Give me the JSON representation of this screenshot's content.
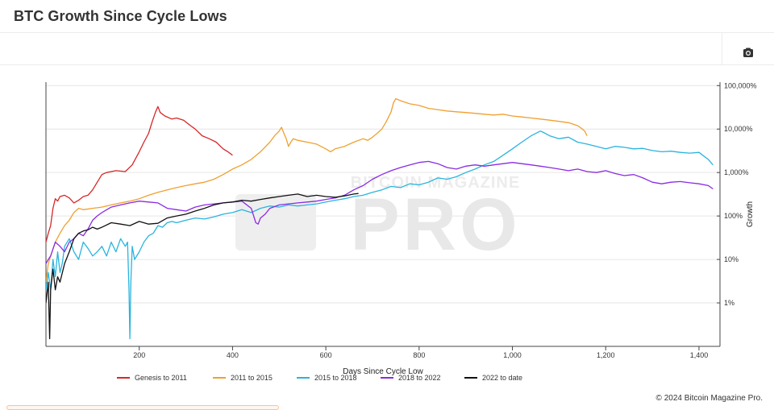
{
  "page": {
    "title": "BTC Growth Since Cycle Lows",
    "copyright": "© 2024 Bitcoin Magazine Pro.",
    "watermark_top": "BITCOIN MAGAZINE",
    "watermark_main": "PRO"
  },
  "toolbar": {
    "camera_icon": "camera-icon"
  },
  "chart_data": {
    "type": "line",
    "title": "",
    "xlabel": "Days Since Cycle Low",
    "ylabel": "Growth",
    "xlim": [
      0,
      1445
    ],
    "ylim": [
      0.1,
      120000
    ],
    "y_scale": "log",
    "x_ticks": [
      200,
      400,
      600,
      800,
      1000,
      1200,
      1400
    ],
    "x_tick_labels": [
      "200",
      "400",
      "600",
      "800",
      "1,000",
      "1,200",
      "1,400"
    ],
    "y_ticks": [
      1,
      10,
      100,
      1000,
      10000,
      100000
    ],
    "y_tick_labels": [
      "1%",
      "10%",
      "100%",
      "1,000%",
      "10,000%",
      "100,000%"
    ],
    "grid": true,
    "legend_position": "bottom-center",
    "series": [
      {
        "name": "Genesis to 2011",
        "color": "#d62728",
        "x": [
          0,
          5,
          10,
          15,
          20,
          25,
          30,
          40,
          50,
          60,
          70,
          80,
          90,
          100,
          110,
          120,
          130,
          150,
          170,
          185,
          200,
          210,
          220,
          228,
          235,
          240,
          245,
          255,
          270,
          280,
          295,
          310,
          320,
          335,
          350,
          365,
          380,
          390,
          400
        ],
        "y": [
          25,
          40,
          60,
          150,
          250,
          220,
          280,
          300,
          260,
          200,
          230,
          280,
          300,
          400,
          600,
          900,
          1000,
          1100,
          1050,
          1500,
          3000,
          5000,
          8000,
          15000,
          25000,
          33000,
          24000,
          20000,
          17000,
          18000,
          16000,
          12000,
          10000,
          7000,
          6000,
          5000,
          3500,
          3000,
          2500
        ]
      },
      {
        "name": "2011 to 2015",
        "color": "#f0a030",
        "x": [
          0,
          5,
          10,
          20,
          30,
          40,
          50,
          60,
          70,
          80,
          100,
          120,
          140,
          160,
          180,
          200,
          220,
          240,
          260,
          280,
          300,
          320,
          340,
          360,
          380,
          400,
          420,
          440,
          460,
          480,
          490,
          500,
          505,
          510,
          515,
          520,
          525,
          530,
          540,
          560,
          580,
          600,
          610,
          620,
          640,
          660,
          680,
          690,
          700,
          710,
          720,
          730,
          740,
          745,
          750,
          760,
          780,
          800,
          820,
          840,
          860,
          880,
          900,
          920,
          940,
          960,
          980,
          1000,
          1020,
          1040,
          1060,
          1080,
          1100,
          1120,
          1140,
          1150,
          1155,
          1160
        ],
        "y": [
          3,
          8,
          12,
          25,
          40,
          60,
          80,
          120,
          150,
          140,
          150,
          160,
          180,
          200,
          220,
          250,
          300,
          350,
          400,
          450,
          500,
          550,
          600,
          700,
          900,
          1200,
          1500,
          2000,
          3000,
          5000,
          7000,
          9000,
          11000,
          8000,
          6000,
          4000,
          5000,
          6000,
          5500,
          5000,
          4500,
          3500,
          3000,
          3500,
          4000,
          5000,
          6000,
          5500,
          6500,
          8000,
          10000,
          15000,
          25000,
          40000,
          50000,
          45000,
          38000,
          35000,
          30000,
          28000,
          26000,
          25000,
          24000,
          23000,
          22000,
          21000,
          22000,
          20000,
          19000,
          18000,
          17000,
          16000,
          15000,
          14000,
          12000,
          10000,
          9000,
          7000
        ]
      },
      {
        "name": "2015 to 2018",
        "color": "#2ab4de",
        "x": [
          0,
          5,
          10,
          15,
          20,
          25,
          30,
          35,
          40,
          50,
          60,
          70,
          80,
          90,
          100,
          110,
          120,
          130,
          140,
          150,
          160,
          170,
          175,
          178,
          180,
          182,
          185,
          190,
          200,
          210,
          220,
          230,
          240,
          250,
          260,
          270,
          280,
          300,
          320,
          340,
          360,
          380,
          400,
          420,
          440,
          460,
          480,
          500,
          520,
          540,
          560,
          580,
          600,
          620,
          640,
          660,
          680,
          700,
          720,
          740,
          760,
          780,
          800,
          820,
          840,
          860,
          880,
          900,
          920,
          940,
          960,
          980,
          1000,
          1020,
          1040,
          1060,
          1065,
          1080,
          1100,
          1120,
          1140,
          1160,
          1180,
          1200,
          1220,
          1240,
          1260,
          1280,
          1300,
          1320,
          1340,
          1360,
          1380,
          1400,
          1410,
          1420,
          1430
        ],
        "y": [
          2,
          5,
          2,
          10,
          4,
          15,
          5,
          8,
          20,
          30,
          15,
          10,
          25,
          18,
          12,
          15,
          20,
          12,
          25,
          15,
          30,
          20,
          25,
          2,
          0.15,
          3,
          20,
          10,
          15,
          25,
          35,
          40,
          60,
          55,
          70,
          75,
          70,
          80,
          90,
          85,
          95,
          110,
          120,
          140,
          120,
          150,
          170,
          160,
          180,
          170,
          180,
          190,
          210,
          230,
          250,
          280,
          300,
          350,
          400,
          480,
          450,
          550,
          520,
          600,
          750,
          700,
          800,
          1000,
          1200,
          1500,
          1800,
          2500,
          3500,
          5000,
          7000,
          9000,
          8500,
          7000,
          6000,
          6500,
          5000,
          4500,
          4000,
          3500,
          4000,
          3800,
          3500,
          3600,
          3200,
          3000,
          3100,
          2900,
          2800,
          2900,
          2400,
          2000,
          1500
        ]
      },
      {
        "name": "2018 to 2022",
        "color": "#8a2be2",
        "x": [
          0,
          5,
          10,
          20,
          30,
          40,
          50,
          60,
          70,
          80,
          90,
          100,
          110,
          120,
          140,
          160,
          180,
          200,
          220,
          240,
          260,
          280,
          300,
          320,
          340,
          360,
          380,
          400,
          420,
          440,
          450,
          455,
          460,
          470,
          480,
          500,
          520,
          540,
          560,
          580,
          600,
          620,
          640,
          660,
          680,
          700,
          720,
          740,
          760,
          780,
          800,
          820,
          840,
          860,
          880,
          900,
          920,
          940,
          960,
          980,
          1000,
          1020,
          1040,
          1060,
          1080,
          1100,
          1120,
          1140,
          1160,
          1180,
          1200,
          1220,
          1240,
          1260,
          1280,
          1300,
          1320,
          1340,
          1360,
          1380,
          1400,
          1420,
          1430
        ],
        "y": [
          8,
          10,
          12,
          25,
          20,
          15,
          25,
          30,
          40,
          35,
          50,
          80,
          100,
          120,
          160,
          180,
          200,
          220,
          210,
          200,
          150,
          140,
          130,
          160,
          180,
          190,
          200,
          210,
          220,
          150,
          70,
          65,
          90,
          110,
          150,
          180,
          190,
          200,
          210,
          220,
          240,
          260,
          300,
          400,
          500,
          700,
          900,
          1100,
          1300,
          1500,
          1700,
          1800,
          1600,
          1300,
          1200,
          1400,
          1500,
          1400,
          1500,
          1600,
          1700,
          1600,
          1500,
          1400,
          1300,
          1200,
          1100,
          1200,
          1050,
          1000,
          1100,
          950,
          850,
          900,
          750,
          600,
          550,
          600,
          620,
          580,
          550,
          500,
          420
        ]
      },
      {
        "name": "2022 to date",
        "color": "#111111",
        "x": [
          0,
          5,
          8,
          10,
          15,
          20,
          25,
          30,
          40,
          50,
          60,
          70,
          80,
          90,
          100,
          110,
          120,
          140,
          160,
          180,
          200,
          220,
          240,
          260,
          280,
          300,
          320,
          340,
          360,
          380,
          400,
          420,
          440,
          460,
          480,
          500,
          520,
          540,
          560,
          580,
          600,
          620,
          640,
          660,
          670
        ],
        "y": [
          1,
          3,
          0.15,
          2,
          6,
          2,
          4,
          3,
          8,
          15,
          30,
          40,
          45,
          48,
          55,
          50,
          55,
          70,
          65,
          60,
          75,
          65,
          68,
          90,
          100,
          110,
          130,
          150,
          180,
          200,
          210,
          230,
          220,
          240,
          260,
          280,
          300,
          320,
          280,
          300,
          280,
          270,
          290,
          320,
          330
        ]
      }
    ]
  }
}
